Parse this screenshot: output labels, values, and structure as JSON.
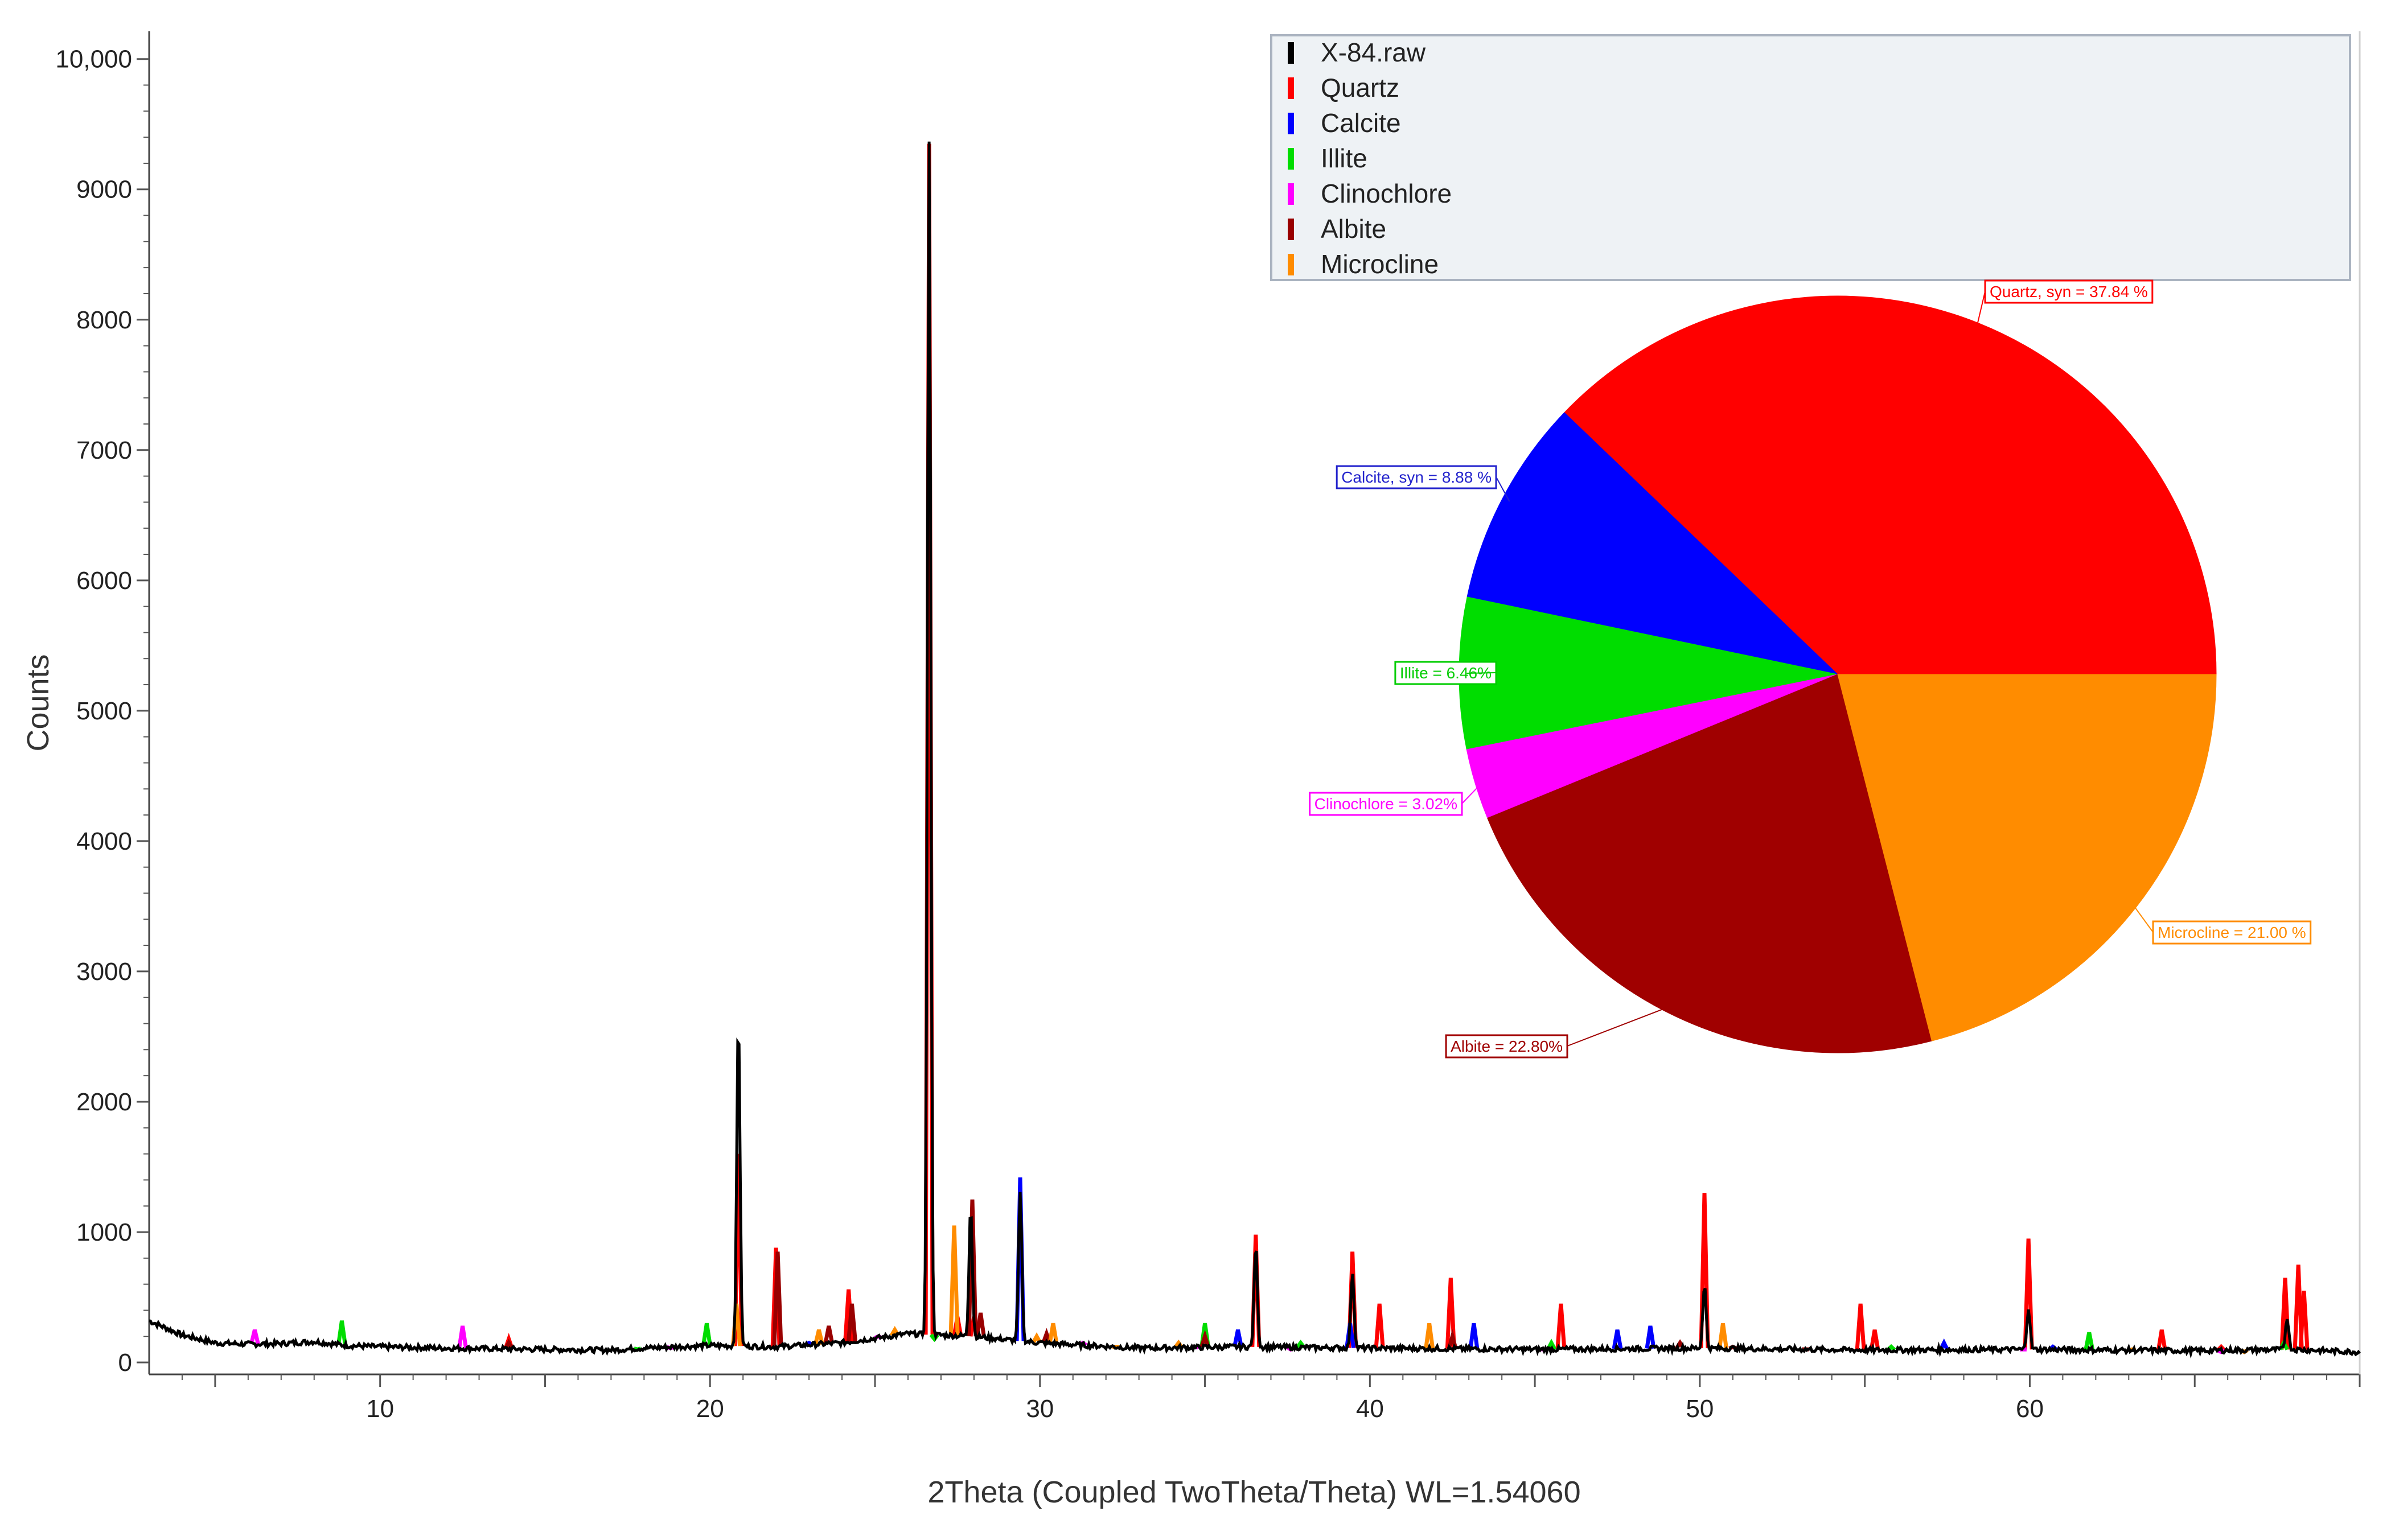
{
  "chart_data": [
    {
      "type": "line",
      "xlabel": "2Theta (Coupled TwoTheta/Theta) WL=1.54060",
      "ylabel": "Counts",
      "xlim": [
        3,
        70
      ],
      "ylim": [
        0,
        10300
      ],
      "x_ticks": [
        10,
        20,
        30,
        40,
        50,
        60
      ],
      "y_ticks": [
        {
          "value": 0,
          "label": "0"
        },
        {
          "value": 1000,
          "label": "1000"
        },
        {
          "value": 2000,
          "label": "2000"
        },
        {
          "value": 3000,
          "label": "3000"
        },
        {
          "value": 4000,
          "label": "4000"
        },
        {
          "value": 5000,
          "label": "5000"
        },
        {
          "value": 6000,
          "label": "6000"
        },
        {
          "value": 7000,
          "label": "7000"
        },
        {
          "value": 8000,
          "label": "8000"
        },
        {
          "value": 9000,
          "label": "9000"
        },
        {
          "value": 10000,
          "label": "10,000"
        }
      ],
      "legend_position": "top-right",
      "legend": [
        {
          "name": "X-84.raw",
          "color": "#000000"
        },
        {
          "name": "Quartz",
          "color": "#ff0000"
        },
        {
          "name": "Calcite",
          "color": "#0000ff"
        },
        {
          "name": "Illite",
          "color": "#00dd00"
        },
        {
          "name": "Clinochlore",
          "color": "#ff00ff"
        },
        {
          "name": "Albite",
          "color": "#990000"
        },
        {
          "name": "Microcline",
          "color": "#ff8c00"
        }
      ],
      "background": [
        [
          3,
          320
        ],
        [
          4,
          210
        ],
        [
          5,
          150
        ],
        [
          6,
          140
        ],
        [
          7,
          145
        ],
        [
          8,
          160
        ],
        [
          9,
          130
        ],
        [
          10,
          120
        ],
        [
          12,
          110
        ],
        [
          15,
          100
        ],
        [
          17,
          95
        ],
        [
          18,
          110
        ],
        [
          20,
          130
        ],
        [
          22,
          120
        ],
        [
          24,
          150
        ],
        [
          26,
          220
        ],
        [
          28,
          200
        ],
        [
          30,
          150
        ],
        [
          33,
          110
        ],
        [
          36,
          120
        ],
        [
          40,
          110
        ],
        [
          45,
          100
        ],
        [
          50,
          110
        ],
        [
          55,
          95
        ],
        [
          60,
          100
        ],
        [
          65,
          90
        ],
        [
          68,
          100
        ],
        [
          70,
          80
        ]
      ],
      "raw_peaks": [
        {
          "x": 20.86,
          "y": 2650
        },
        {
          "x": 26.64,
          "y": 9350
        },
        {
          "x": 27.9,
          "y": 1200
        },
        {
          "x": 29.4,
          "y": 1300
        },
        {
          "x": 36.54,
          "y": 900
        },
        {
          "x": 39.47,
          "y": 700
        },
        {
          "x": 50.14,
          "y": 600
        },
        {
          "x": 59.96,
          "y": 420
        },
        {
          "x": 67.8,
          "y": 350
        }
      ],
      "series": [
        {
          "name": "Quartz",
          "color": "#ff0000",
          "peaks": [
            [
              20.86,
              1600
            ],
            [
              26.64,
              9350
            ],
            [
              36.54,
              980
            ],
            [
              39.47,
              850
            ],
            [
              40.29,
              450
            ],
            [
              42.45,
              650
            ],
            [
              45.79,
              450
            ],
            [
              50.14,
              1300
            ],
            [
              54.87,
              450
            ],
            [
              55.3,
              250
            ],
            [
              59.96,
              950
            ],
            [
              64.0,
              250
            ],
            [
              65.8,
              120
            ],
            [
              67.74,
              650
            ],
            [
              68.14,
              750
            ],
            [
              68.31,
              550
            ],
            [
              13.9,
              180
            ],
            [
              22.0,
              880
            ],
            [
              24.2,
              560
            ],
            [
              27.5,
              350
            ],
            [
              28.0,
              350
            ]
          ]
        },
        {
          "name": "Calcite",
          "color": "#0000ff",
          "peaks": [
            [
              23.0,
              150
            ],
            [
              29.4,
              1420
            ],
            [
              36.0,
              250
            ],
            [
              39.4,
              300
            ],
            [
              43.15,
              300
            ],
            [
              47.5,
              250
            ],
            [
              48.5,
              280
            ],
            [
              57.4,
              150
            ],
            [
              60.7,
              120
            ]
          ]
        },
        {
          "name": "Illite",
          "color": "#00dd00",
          "peaks": [
            [
              8.84,
              320
            ],
            [
              17.8,
              100
            ],
            [
              19.9,
              300
            ],
            [
              26.8,
              180
            ],
            [
              35.0,
              300
            ],
            [
              37.9,
              150
            ],
            [
              45.5,
              150
            ],
            [
              55.8,
              120
            ],
            [
              61.8,
              230
            ],
            [
              67.7,
              150
            ]
          ]
        },
        {
          "name": "Clinochlore",
          "color": "#ff00ff",
          "peaks": [
            [
              6.2,
              250
            ],
            [
              12.5,
              280
            ],
            [
              18.8,
              110
            ],
            [
              25.1,
              200
            ],
            [
              31.3,
              150
            ],
            [
              34.7,
              120
            ],
            [
              37.6,
              100
            ],
            [
              45.3,
              100
            ],
            [
              59.8,
              100
            ],
            [
              65.8,
              80
            ]
          ]
        },
        {
          "name": "Albite",
          "color": "#990000",
          "peaks": [
            [
              13.9,
              150
            ],
            [
              22.05,
              850
            ],
            [
              23.6,
              280
            ],
            [
              24.3,
              450
            ],
            [
              27.95,
              1250
            ],
            [
              28.2,
              380
            ],
            [
              30.2,
              220
            ],
            [
              35.0,
              200
            ],
            [
              42.5,
              200
            ],
            [
              49.4,
              150
            ],
            [
              51.0,
              120
            ],
            [
              53.2,
              100
            ]
          ]
        },
        {
          "name": "Microcline",
          "color": "#ff8c00",
          "peaks": [
            [
              20.8,
              450
            ],
            [
              23.3,
              250
            ],
            [
              25.6,
              250
            ],
            [
              27.4,
              1050
            ],
            [
              29.9,
              200
            ],
            [
              30.4,
              300
            ],
            [
              32.3,
              120
            ],
            [
              34.2,
              150
            ],
            [
              41.8,
              300
            ],
            [
              50.7,
              300
            ],
            [
              63.1,
              100
            ],
            [
              66.5,
              80
            ]
          ]
        }
      ]
    },
    {
      "type": "pie",
      "slices": [
        {
          "label": "Quartz, syn = 37.84 %",
          "value": 37.84,
          "color": "#ff0000",
          "label_color": "#ff0000"
        },
        {
          "label": "Microcline = 21.00 %",
          "value": 21.0,
          "color": "#ff8c00",
          "label_color": "#ff8c00"
        },
        {
          "label": "Albite = 22.80%",
          "value": 22.8,
          "color": "#a00000",
          "label_color": "#a00000"
        },
        {
          "label": "Clinochlore = 3.02%",
          "value": 3.02,
          "color": "#ff00ff",
          "label_color": "#ff00ff"
        },
        {
          "label": "Illite = 6.46%",
          "value": 6.46,
          "color": "#00dd00",
          "label_color": "#00cc00"
        },
        {
          "label": "Calcite, syn = 8.88 %",
          "value": 8.88,
          "color": "#0000ff",
          "label_color": "#2222cc"
        }
      ],
      "start_angle_deg": 0,
      "direction": "clockwise-from-3-oclock-upward"
    }
  ]
}
